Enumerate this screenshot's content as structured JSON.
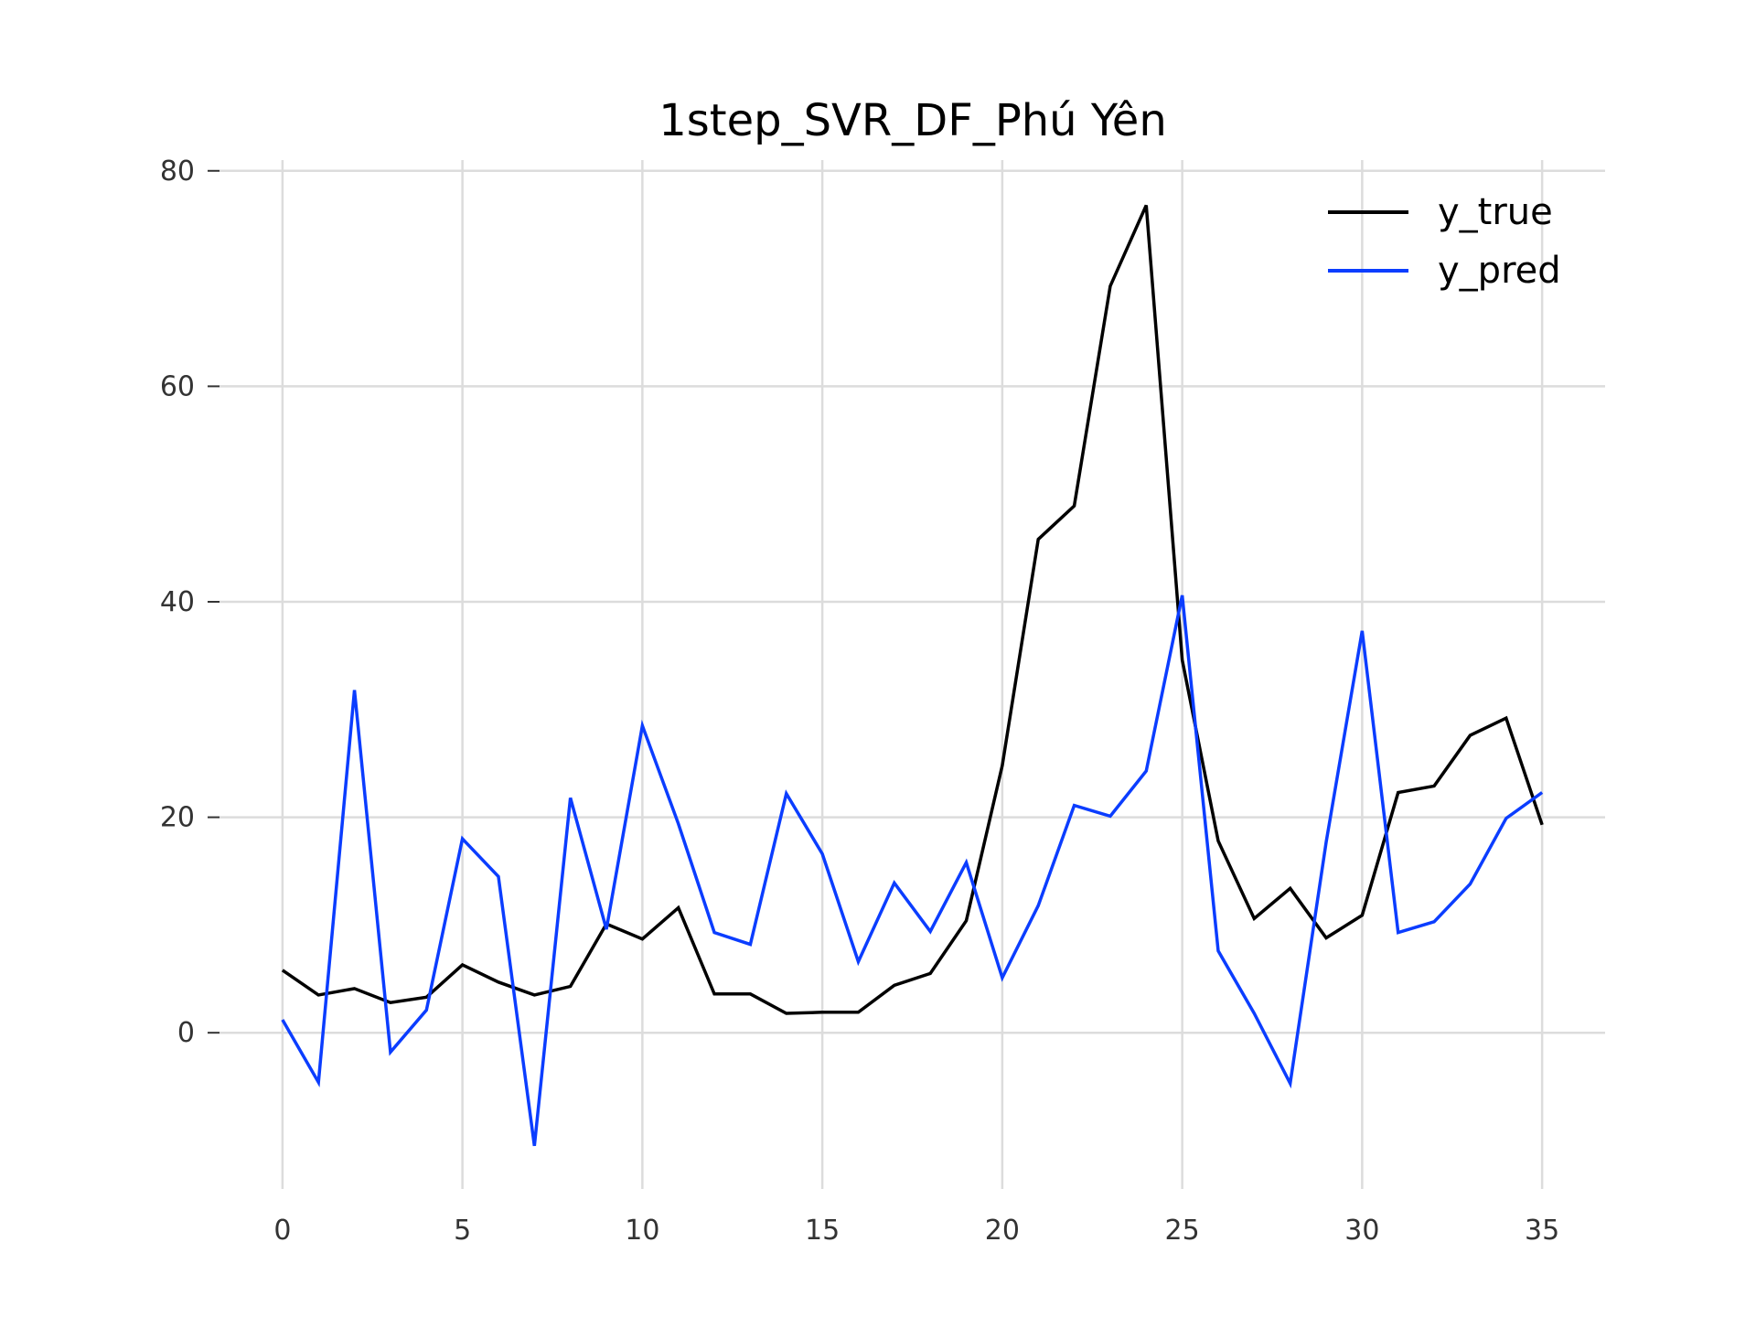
{
  "chart_data": {
    "type": "line",
    "title": "1step_SVR_DF_Phú Yên",
    "xlabel": "",
    "ylabel": "",
    "xlim": [
      -1.75,
      36.75
    ],
    "ylim": [
      -14.5,
      81
    ],
    "x_ticks": [
      0,
      5,
      10,
      15,
      20,
      25,
      30,
      35
    ],
    "y_ticks": [
      0,
      20,
      40,
      60,
      80
    ],
    "grid": true,
    "legend_position": "top-right",
    "x": [
      0,
      1,
      2,
      3,
      4,
      5,
      6,
      7,
      8,
      9,
      10,
      11,
      12,
      13,
      14,
      15,
      16,
      17,
      18,
      19,
      20,
      21,
      22,
      23,
      24,
      25,
      26,
      27,
      28,
      29,
      30,
      31,
      32,
      33,
      34,
      35
    ],
    "series": [
      {
        "name": "y_true",
        "color": "#000000",
        "values": [
          5.8,
          3.5,
          4.1,
          2.8,
          3.3,
          6.3,
          4.7,
          3.5,
          4.3,
          10.1,
          8.7,
          11.6,
          3.6,
          3.6,
          1.8,
          1.9,
          1.9,
          4.4,
          5.5,
          10.4,
          24.8,
          45.8,
          48.9,
          69.3,
          76.8,
          34.6,
          17.8,
          10.6,
          13.4,
          8.8,
          10.9,
          22.3,
          22.9,
          27.6,
          29.2,
          19.3
        ]
      },
      {
        "name": "y_pred",
        "color": "#0b3dff",
        "values": [
          1.2,
          -4.6,
          31.8,
          -1.8,
          2.1,
          18.0,
          14.5,
          -10.5,
          21.8,
          9.6,
          28.5,
          19.4,
          9.3,
          8.2,
          22.2,
          16.6,
          6.6,
          13.9,
          9.4,
          15.8,
          5.1,
          11.8,
          21.1,
          20.1,
          24.3,
          40.6,
          7.6,
          1.8,
          -4.7,
          17.7,
          37.3,
          9.3,
          10.3,
          13.8,
          19.9,
          22.3
        ]
      }
    ]
  }
}
